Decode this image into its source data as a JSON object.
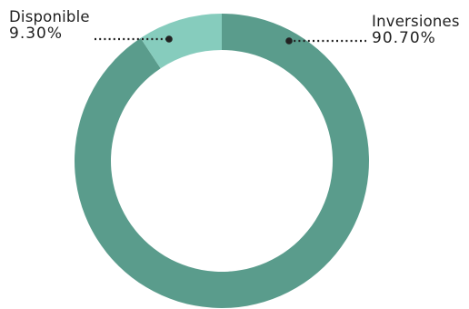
{
  "chart_data": {
    "type": "pie",
    "variant": "donut",
    "slices": [
      {
        "label": "Inversiones",
        "value": 90.7,
        "display": "90.70%",
        "color": "#5a9c8c"
      },
      {
        "label": "Disponible",
        "value": 9.3,
        "display": "9.30%",
        "color": "#86ccbd"
      }
    ],
    "start_angle_deg": 0,
    "direction": "clockwise",
    "leader_line_style": "dotted",
    "label_placement": "outside-top"
  }
}
